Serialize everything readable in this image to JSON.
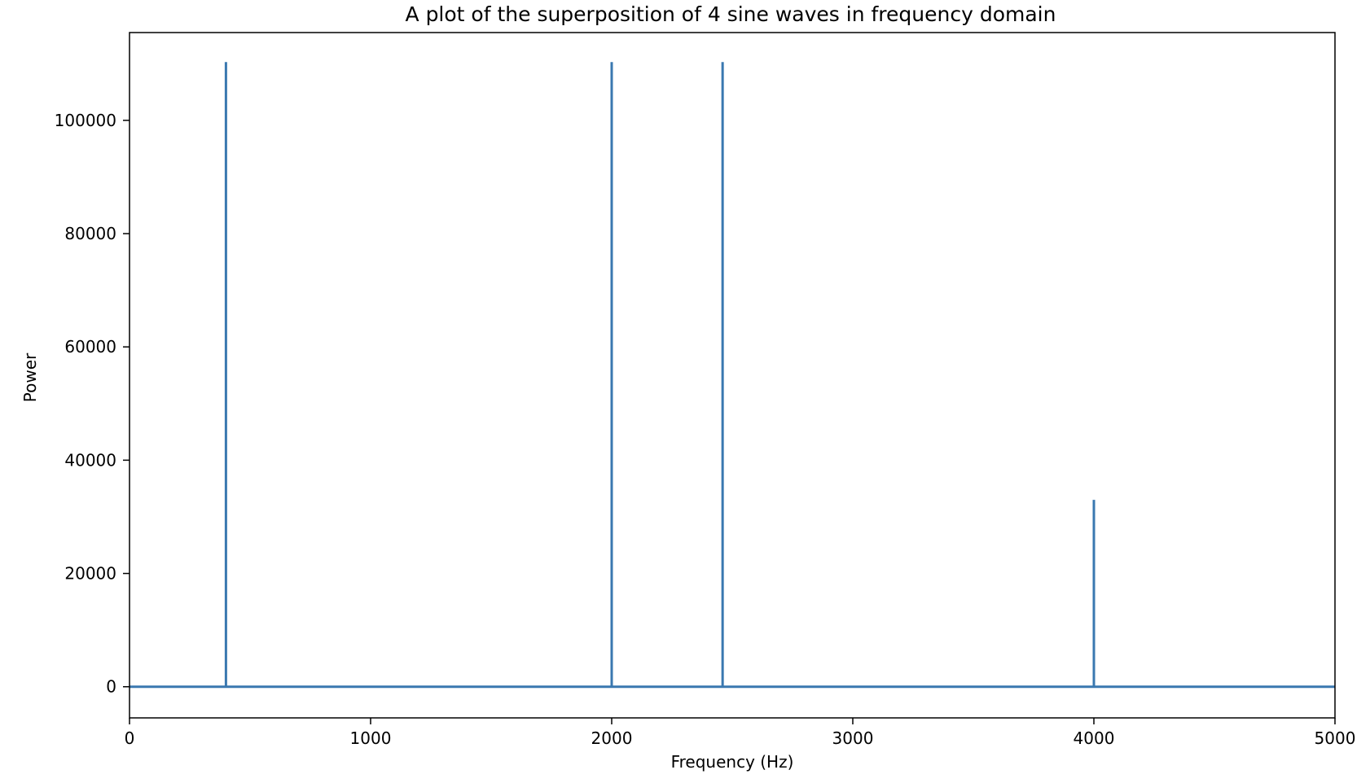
{
  "chart_data": {
    "type": "line",
    "title": "A plot of the superposition of 4 sine waves in frequency domain",
    "xlabel": "Frequency (Hz)",
    "ylabel": "Power",
    "xlim": [
      0,
      5000
    ],
    "ylim": [
      -5500,
      115500
    ],
    "xticks": [
      0,
      1000,
      2000,
      3000,
      4000,
      5000
    ],
    "yticks": [
      0,
      20000,
      40000,
      60000,
      80000,
      100000
    ],
    "grid": false,
    "legend": "none",
    "series": [
      {
        "color": "#3a78b0",
        "x": [
          0,
          400,
          400,
          400,
          2000,
          2000,
          2000,
          2460,
          2460,
          2460,
          4000,
          4000,
          4000,
          5000
        ],
        "y": [
          0,
          0,
          110300,
          0,
          0,
          110300,
          0,
          0,
          110300,
          0,
          0,
          33000,
          0,
          0
        ]
      }
    ]
  }
}
